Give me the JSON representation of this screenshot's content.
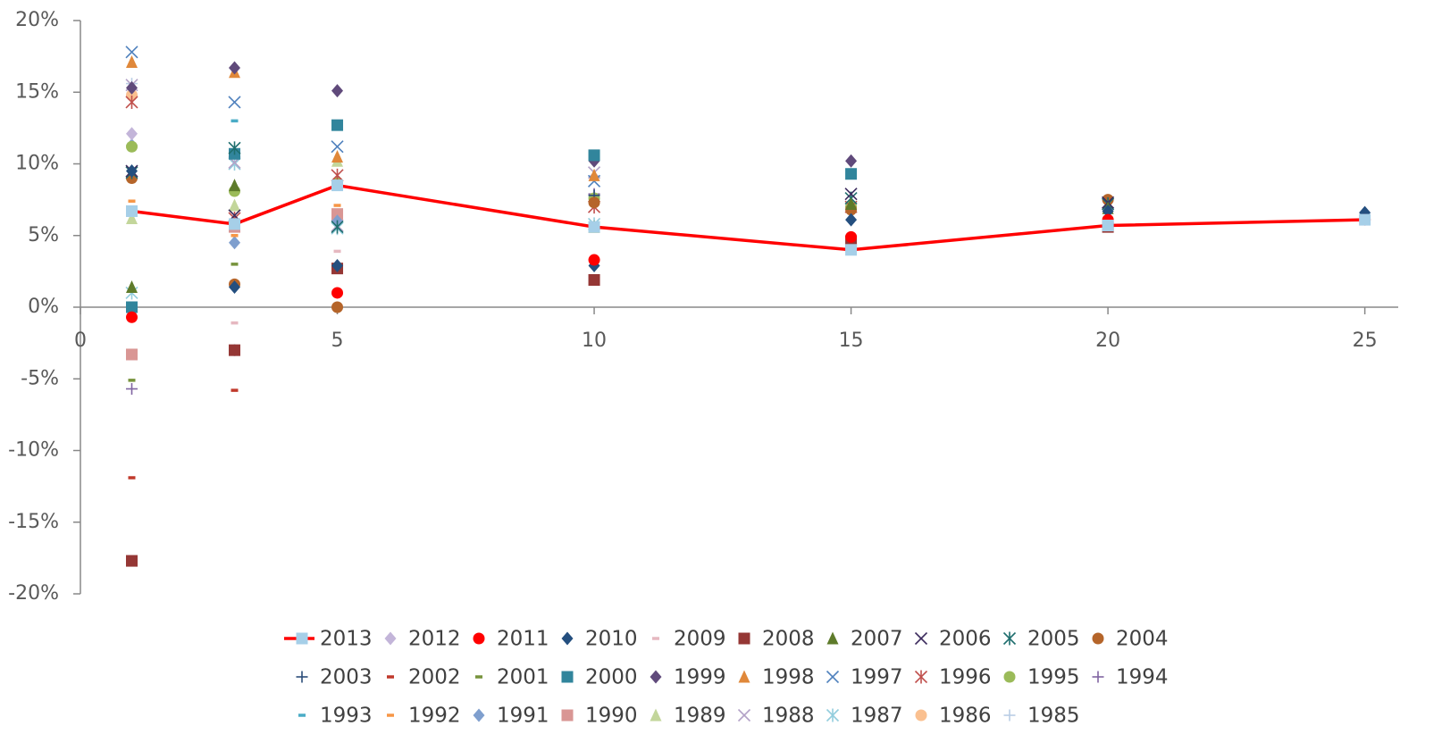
{
  "chart_data": {
    "type": "scatter",
    "x": [
      1,
      3,
      5,
      10,
      15,
      20,
      25
    ],
    "xlim": [
      0,
      25.65
    ],
    "xticks": [
      0,
      5,
      10,
      15,
      20,
      25
    ],
    "ylim": [
      -20,
      20
    ],
    "yticks": [
      {
        "value": -20,
        "label": "-20%"
      },
      {
        "value": -15,
        "label": "-15%"
      },
      {
        "value": -10,
        "label": "-10%"
      },
      {
        "value": -5,
        "label": "-5%"
      },
      {
        "value": 0,
        "label": "0%"
      },
      {
        "value": 5,
        "label": "5%"
      },
      {
        "value": 10,
        "label": "10%"
      },
      {
        "value": 15,
        "label": "15%"
      },
      {
        "value": 20,
        "label": "20%"
      }
    ],
    "legend": "bottom",
    "series": [
      {
        "name": "2013",
        "color": "#a6cfe8",
        "marker": "square",
        "line": true,
        "line_color": "#ff0000",
        "values": [
          6.7,
          5.8,
          8.5,
          5.6,
          4.0,
          5.7,
          6.1
        ]
      },
      {
        "name": "2012",
        "color": "#c3b5d9",
        "marker": "diamond",
        "values": [
          12.1,
          null,
          null,
          null,
          null,
          null,
          null
        ]
      },
      {
        "name": "2011",
        "color": "#ff0000",
        "marker": "circle",
        "values": [
          -0.7,
          null,
          1.0,
          3.3,
          4.9,
          6.1,
          6.1
        ]
      },
      {
        "name": "2010",
        "color": "#244f7f",
        "marker": "diamond",
        "values": [
          9.5,
          1.4,
          2.9,
          2.9,
          6.1,
          6.7,
          6.6
        ]
      },
      {
        "name": "2009",
        "color": "#e6b8c0",
        "marker": "dash",
        "values": [
          null,
          -1.1,
          3.9,
          null,
          null,
          null,
          null
        ]
      },
      {
        "name": "2008",
        "color": "#953735",
        "marker": "square",
        "values": [
          -17.7,
          -3.0,
          2.7,
          1.9,
          4.6,
          5.6,
          null
        ]
      },
      {
        "name": "2007",
        "color": "#5e7b2b",
        "marker": "triangle",
        "values": [
          1.4,
          8.5,
          null,
          5.6,
          7.2,
          6.9,
          null
        ]
      },
      {
        "name": "2006",
        "color": "#3d2c5e",
        "marker": "x",
        "values": [
          9.5,
          6.4,
          null,
          null,
          7.9,
          7.3,
          null
        ]
      },
      {
        "name": "2005",
        "color": "#1f6e6e",
        "marker": "asterisk",
        "values": [
          9.4,
          11.1,
          5.6,
          null,
          7.6,
          7.2,
          null
        ]
      },
      {
        "name": "2004",
        "color": "#b5652a",
        "marker": "circle",
        "values": [
          9.0,
          1.6,
          0.0,
          7.3,
          6.8,
          7.5,
          null
        ]
      },
      {
        "name": "2003",
        "color": "#2c4d7a",
        "marker": "plus",
        "values": [
          null,
          -3.0,
          2.9,
          7.8,
          null,
          null,
          null
        ]
      },
      {
        "name": "2002",
        "color": "#c0392b",
        "marker": "dash",
        "values": [
          -11.9,
          -5.8,
          null,
          null,
          null,
          null,
          null
        ]
      },
      {
        "name": "2001",
        "color": "#77933c",
        "marker": "dash",
        "values": [
          -5.1,
          3.0,
          null,
          null,
          null,
          null,
          null
        ]
      },
      {
        "name": "2000",
        "color": "#31859c",
        "marker": "square",
        "values": [
          0.0,
          10.7,
          12.7,
          10.6,
          9.3,
          null,
          null
        ]
      },
      {
        "name": "1999",
        "color": "#604a7b",
        "marker": "diamond",
        "values": [
          15.3,
          16.7,
          15.1,
          10.2,
          10.2,
          null,
          null
        ]
      },
      {
        "name": "1998",
        "color": "#e0883a",
        "marker": "triangle",
        "values": [
          17.1,
          16.4,
          10.5,
          9.2,
          null,
          null,
          null
        ]
      },
      {
        "name": "1997",
        "color": "#4f81bd",
        "marker": "x",
        "values": [
          17.8,
          14.3,
          11.2,
          8.8,
          null,
          null,
          null
        ]
      },
      {
        "name": "1996",
        "color": "#c0504d",
        "marker": "asterisk",
        "values": [
          14.3,
          6.2,
          9.2,
          7.0,
          7.0,
          null,
          null
        ]
      },
      {
        "name": "1995",
        "color": "#9bbb59",
        "marker": "circle",
        "values": [
          11.2,
          8.1,
          8.7,
          7.6,
          7.0,
          null,
          null
        ]
      },
      {
        "name": "1994",
        "color": "#8064a2",
        "marker": "plus",
        "values": [
          -5.7,
          null,
          null,
          7.9,
          null,
          null,
          null
        ]
      },
      {
        "name": "1993",
        "color": "#4bacc6",
        "marker": "dash",
        "values": [
          null,
          13.0,
          null,
          null,
          null,
          null,
          null
        ]
      },
      {
        "name": "1992",
        "color": "#f79646",
        "marker": "dash",
        "values": [
          7.4,
          5.0,
          7.1,
          null,
          null,
          null,
          null
        ]
      },
      {
        "name": "1991",
        "color": "#7f9fce",
        "marker": "diamond",
        "values": [
          11.3,
          4.5,
          6.0,
          null,
          null,
          null,
          null
        ]
      },
      {
        "name": "1990",
        "color": "#d99694",
        "marker": "square",
        "values": [
          -3.3,
          5.6,
          6.5,
          null,
          null,
          null,
          null
        ]
      },
      {
        "name": "1989",
        "color": "#c3d69b",
        "marker": "triangle",
        "values": [
          6.2,
          7.1,
          10.2,
          5.6,
          null,
          null,
          null
        ]
      },
      {
        "name": "1988",
        "color": "#b3a2c7",
        "marker": "x",
        "values": [
          15.5,
          10.1,
          5.7,
          9.4,
          null,
          null,
          null
        ]
      },
      {
        "name": "1987",
        "color": "#93cddd",
        "marker": "asterisk",
        "values": [
          1.0,
          10.0,
          5.5,
          5.8,
          null,
          null,
          null
        ]
      },
      {
        "name": "1986",
        "color": "#fac090",
        "marker": "circle",
        "values": [
          14.8,
          null,
          null,
          null,
          null,
          null,
          null
        ]
      },
      {
        "name": "1985",
        "color": "#b9cde5",
        "marker": "plus",
        "values": [
          15.6,
          null,
          null,
          null,
          null,
          null,
          null
        ]
      }
    ]
  }
}
